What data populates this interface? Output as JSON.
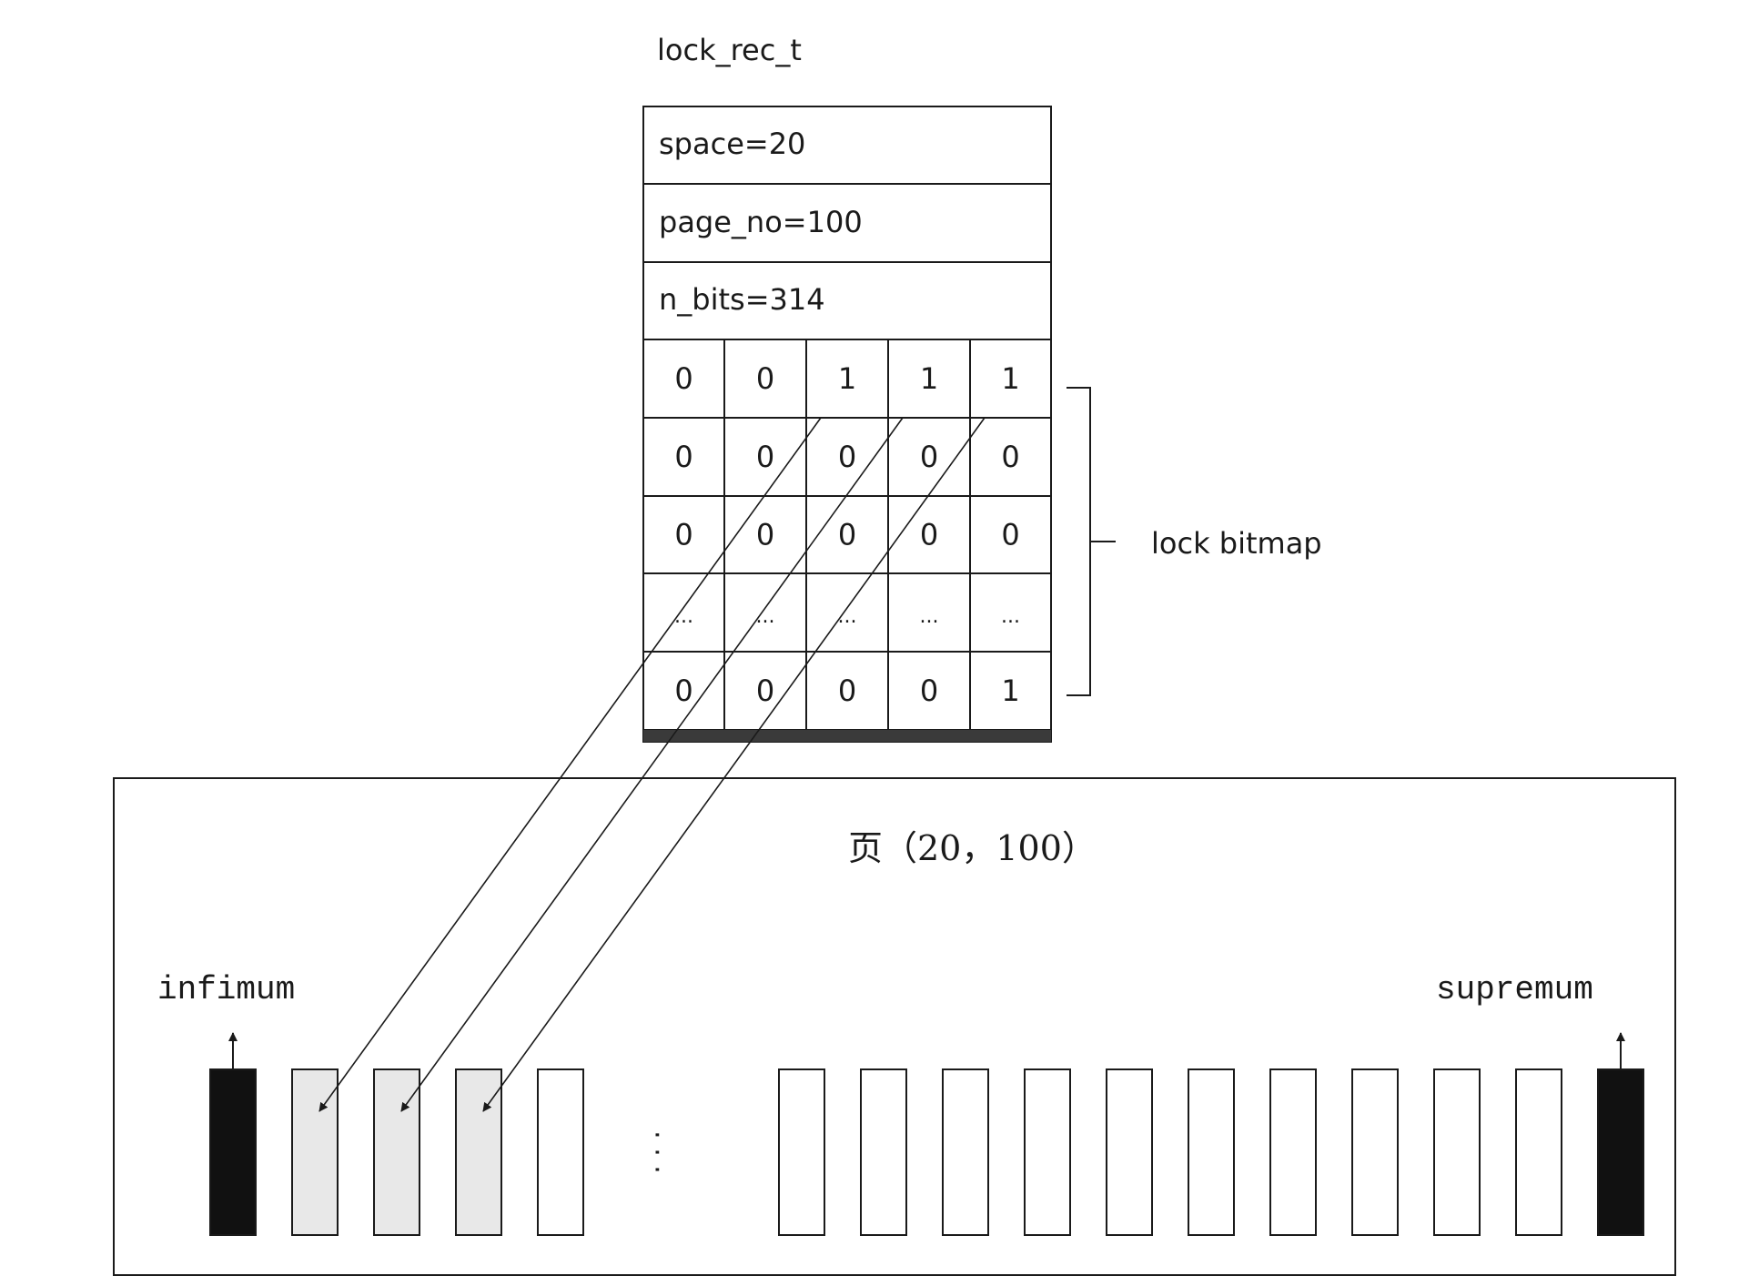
{
  "struct": {
    "title": "lock_rec_t",
    "fields": [
      "space=20",
      "page_no=100",
      "n_bits=314"
    ]
  },
  "bitmap": {
    "label": "lock bitmap",
    "rows": [
      [
        "0",
        "0",
        "1",
        "1",
        "1"
      ],
      [
        "0",
        "0",
        "0",
        "0",
        "0"
      ],
      [
        "0",
        "0",
        "0",
        "0",
        "0"
      ],
      [
        "...",
        "...",
        "...",
        "...",
        "..."
      ],
      [
        "0",
        "0",
        "0",
        "0",
        "1"
      ]
    ]
  },
  "page": {
    "title": "页（20，100）",
    "infimum_label": "infimum",
    "supremum_label": "supremum",
    "ellipsis": "· · ·",
    "records": [
      {
        "kind": "infimum",
        "highlighted": false
      },
      {
        "kind": "user",
        "highlighted": true
      },
      {
        "kind": "user",
        "highlighted": true
      },
      {
        "kind": "user",
        "highlighted": true
      },
      {
        "kind": "user",
        "highlighted": false
      },
      {
        "kind": "gap"
      },
      {
        "kind": "user",
        "highlighted": false
      },
      {
        "kind": "user",
        "highlighted": false
      },
      {
        "kind": "user",
        "highlighted": false
      },
      {
        "kind": "user",
        "highlighted": false
      },
      {
        "kind": "user",
        "highlighted": false
      },
      {
        "kind": "user",
        "highlighted": false
      },
      {
        "kind": "user",
        "highlighted": false
      },
      {
        "kind": "user",
        "highlighted": false
      },
      {
        "kind": "user",
        "highlighted": false
      },
      {
        "kind": "user",
        "highlighted": false
      },
      {
        "kind": "supremum",
        "highlighted": false
      }
    ]
  },
  "colors": {
    "line": "#1a1a1a",
    "highlight_fill": "#e8e8e8",
    "system_record_fill": "#111111",
    "background": "#ffffff"
  }
}
